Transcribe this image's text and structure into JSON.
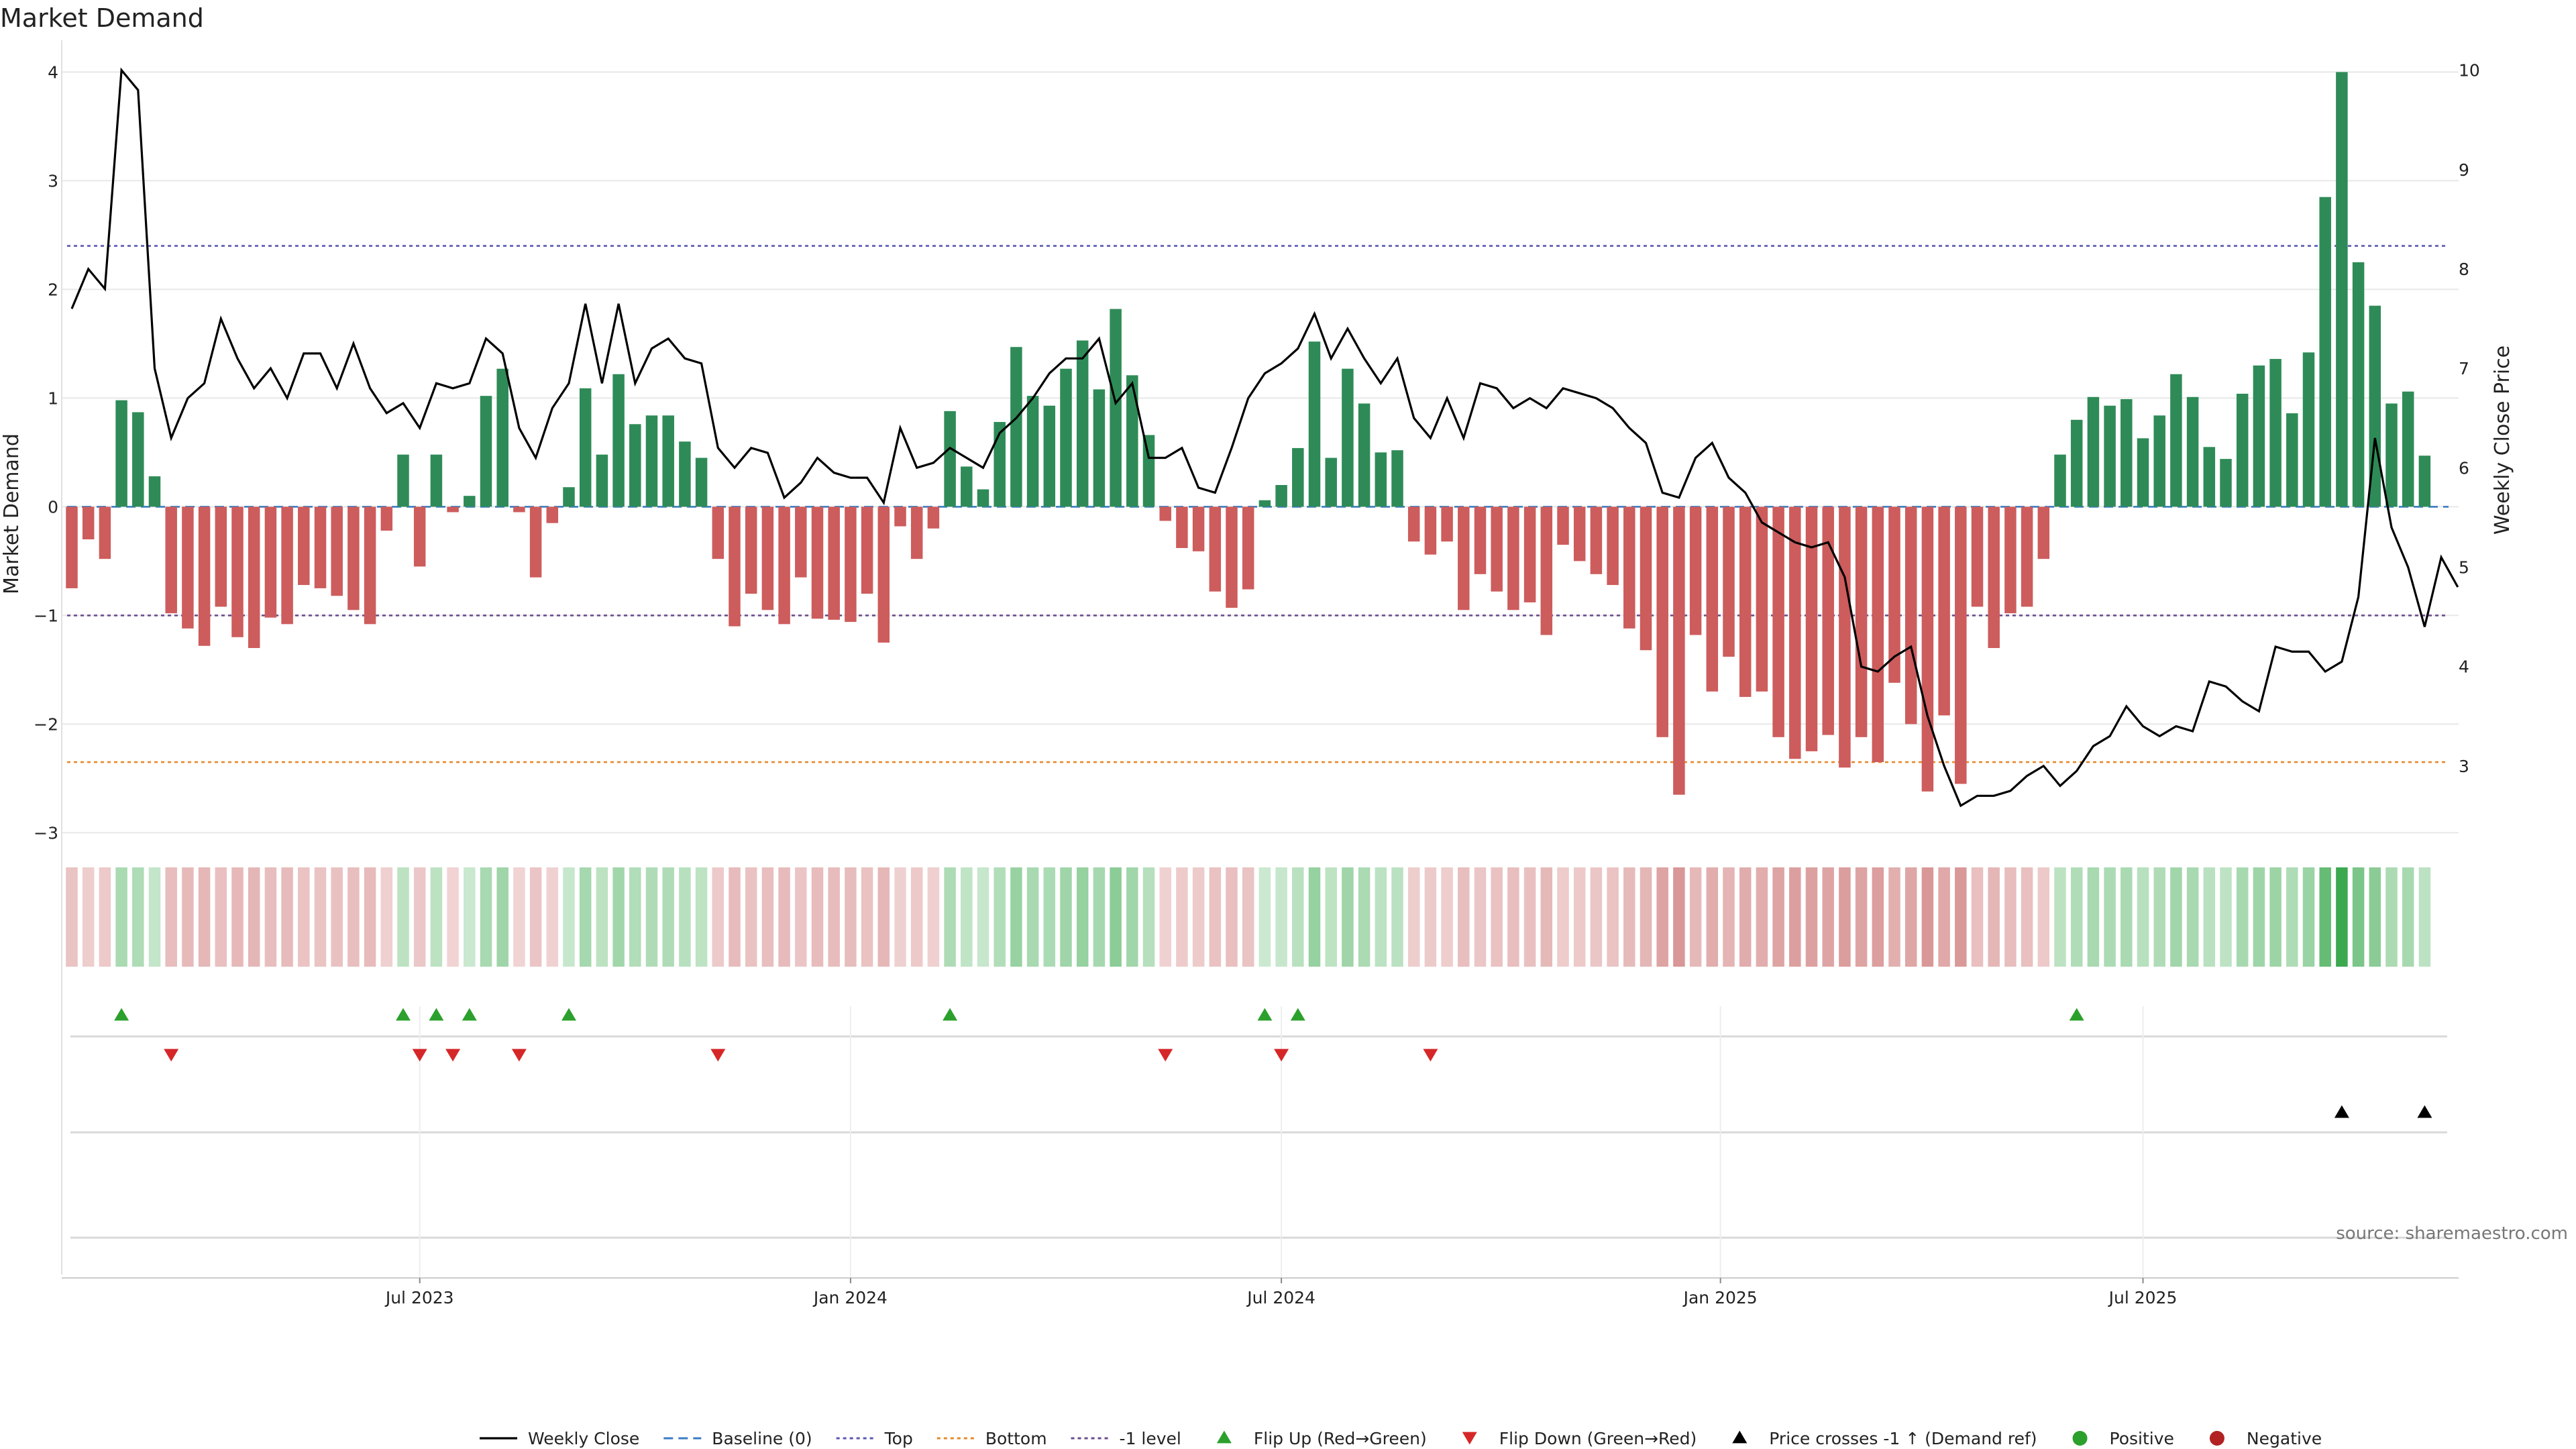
{
  "chart_data": {
    "type": "bar",
    "title": "Market Demand",
    "ylabel": "Market Demand",
    "y2label": "Weekly Close Price",
    "source": "source: sharemaestro.com",
    "ylim": [
      -3.3,
      4.2
    ],
    "y2lim": [
      2.0,
      10.2
    ],
    "y_ticks": [
      4,
      3,
      2,
      1,
      0,
      -1,
      -2,
      -3
    ],
    "y_tick_labels": [
      "4",
      "3",
      "2",
      "1",
      "0",
      "−1",
      "−2",
      "−3"
    ],
    "y2_ticks": [
      10,
      9,
      8,
      7,
      6,
      5,
      4,
      3
    ],
    "x_ticks": [
      {
        "week": 21,
        "label": "Jul 2023"
      },
      {
        "week": 47,
        "label": "Jan 2024"
      },
      {
        "week": 73,
        "label": "Jul 2024"
      },
      {
        "week": 99.5,
        "label": "Jan 2025"
      },
      {
        "week": 125,
        "label": "Jul 2025"
      }
    ],
    "reference_lines": [
      {
        "name": "Top",
        "value": 2.4,
        "color": "#5a5ab0",
        "style": "dotted"
      },
      {
        "name": "Bottom",
        "value": -2.35,
        "color": "#e8892a",
        "style": "dotted"
      },
      {
        "name": "-1 level",
        "value": -1.0,
        "color": "#6a4c8c",
        "style": "dotted"
      },
      {
        "name": "Baseline (0)",
        "value": 0,
        "color": "#3a7dc4",
        "style": "dashed"
      }
    ],
    "demand": [
      -0.75,
      -0.3,
      -0.48,
      0.98,
      0.87,
      0.28,
      -0.98,
      -1.12,
      -1.28,
      -0.92,
      -1.2,
      -1.3,
      -1.02,
      -1.08,
      -0.72,
      -0.75,
      -0.82,
      -0.95,
      -1.08,
      -0.22,
      0.48,
      -0.55,
      0.48,
      -0.05,
      0.1,
      1.02,
      1.27,
      -0.05,
      -0.65,
      -0.15,
      0.18,
      1.09,
      0.48,
      1.22,
      0.76,
      0.84,
      0.84,
      0.6,
      0.45,
      -0.48,
      -1.1,
      -0.8,
      -0.95,
      -1.08,
      -0.65,
      -1.03,
      -1.04,
      -1.06,
      -0.8,
      -1.25,
      -0.18,
      -0.48,
      -0.2,
      0.88,
      0.37,
      0.16,
      0.78,
      1.47,
      1.02,
      0.93,
      1.27,
      1.53,
      1.08,
      1.82,
      1.21,
      0.66,
      -0.13,
      -0.38,
      -0.41,
      -0.78,
      -0.93,
      -0.76,
      0.06,
      0.2,
      0.54,
      1.52,
      0.45,
      1.27,
      0.95,
      0.5,
      0.52,
      -0.32,
      -0.44,
      -0.32,
      -0.95,
      -0.62,
      -0.78,
      -0.95,
      -0.88,
      -1.18,
      -0.35,
      -0.5,
      -0.62,
      -0.72,
      -1.12,
      -1.32,
      -2.12,
      -2.65,
      -1.18,
      -1.7,
      -1.38,
      -1.75,
      -1.7,
      -2.12,
      -2.32,
      -2.25,
      -2.1,
      -2.4,
      -2.12,
      -2.35,
      -1.62,
      -2.0,
      -2.62,
      -1.92,
      -2.55,
      -0.92,
      -1.3,
      -0.98,
      -0.92,
      -0.48,
      0.48,
      0.8,
      1.01,
      0.93,
      0.99,
      0.63,
      0.84,
      1.22,
      1.01,
      0.55,
      0.44,
      1.04,
      1.3,
      1.36,
      0.86,
      1.42,
      2.85,
      4.0,
      2.25,
      1.85,
      0.95,
      1.06,
      0.47
    ],
    "weekly_close": [
      7.6,
      8.0,
      7.8,
      10.0,
      9.8,
      7.0,
      6.3,
      6.7,
      6.85,
      7.5,
      7.1,
      6.8,
      7.0,
      6.7,
      7.15,
      7.15,
      6.8,
      7.25,
      6.8,
      6.55,
      6.65,
      6.4,
      6.85,
      6.8,
      6.85,
      7.3,
      7.15,
      6.4,
      6.1,
      6.6,
      6.85,
      7.65,
      6.85,
      7.65,
      6.85,
      7.2,
      7.3,
      7.1,
      7.05,
      6.2,
      6.0,
      6.2,
      6.15,
      5.7,
      5.85,
      6.1,
      5.95,
      5.9,
      5.9,
      5.65,
      6.4,
      6.0,
      6.05,
      6.2,
      6.1,
      6.0,
      6.35,
      6.5,
      6.7,
      6.95,
      7.1,
      7.1,
      7.3,
      6.65,
      6.85,
      6.1,
      6.1,
      6.2,
      5.8,
      5.75,
      6.2,
      6.7,
      6.95,
      7.05,
      7.2,
      7.55,
      7.1,
      7.4,
      7.1,
      6.85,
      7.1,
      6.5,
      6.3,
      6.7,
      6.3,
      6.85,
      6.8,
      6.6,
      6.7,
      6.6,
      6.8,
      6.75,
      6.7,
      6.6,
      6.4,
      6.25,
      5.75,
      5.7,
      6.1,
      6.25,
      5.9,
      5.75,
      5.45,
      5.35,
      5.25,
      5.2,
      5.25,
      4.9,
      4.0,
      3.95,
      4.1,
      4.2,
      3.5,
      3.0,
      2.6,
      2.7,
      2.7,
      2.75,
      2.9,
      3.0,
      2.8,
      2.95,
      3.2,
      3.3,
      3.6,
      3.4,
      3.3,
      3.4,
      3.35,
      3.85,
      3.8,
      3.65,
      3.55,
      4.2,
      4.15,
      4.15,
      3.95,
      4.05,
      4.7,
      6.3,
      5.4,
      5.0,
      4.4,
      5.1,
      4.8
    ],
    "flips_up_weeks": [
      3,
      20,
      22,
      24,
      30,
      53,
      72,
      74,
      121
    ],
    "flips_down_weeks": [
      6,
      21,
      23,
      27,
      39,
      66,
      73,
      82
    ],
    "price_cross_weeks": [
      137,
      142
    ],
    "legend": [
      {
        "label": "Weekly Close",
        "symbol": "line",
        "color": "#000000"
      },
      {
        "label": "Baseline (0)",
        "symbol": "dash",
        "color": "#3a7dc4"
      },
      {
        "label": "Top",
        "symbol": "dot",
        "color": "#5a5ab0"
      },
      {
        "label": "Bottom",
        "symbol": "dot",
        "color": "#e8892a"
      },
      {
        "label": "-1 level",
        "symbol": "dot",
        "color": "#6a4c8c"
      },
      {
        "label": "Flip Up (Red→Green)",
        "symbol": "tri-up",
        "color": "#2ca02c"
      },
      {
        "label": "Flip Down (Green→Red)",
        "symbol": "tri-down",
        "color": "#d62728"
      },
      {
        "label": "Price crosses -1 ↑ (Demand ref)",
        "symbol": "tri-up",
        "color": "#000000"
      },
      {
        "label": "Positive",
        "symbol": "circle",
        "color": "#2ca02c"
      },
      {
        "label": "Negative",
        "symbol": "circle",
        "color": "#b22222"
      }
    ],
    "colors": {
      "positive_bar": "#2e8b57",
      "negative_bar": "#cd5c5c",
      "flip_up": "#2ca02c",
      "flip_down": "#d62728",
      "price_line": "#000000",
      "grid": "#e8e8e8"
    }
  }
}
